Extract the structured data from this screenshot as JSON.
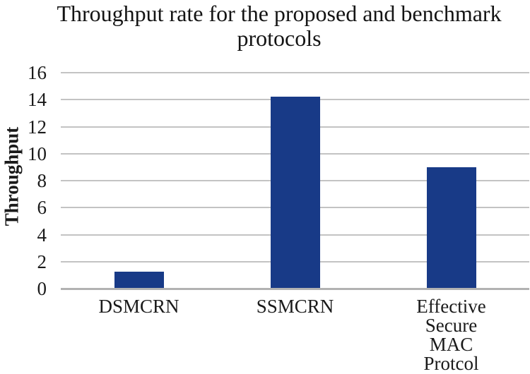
{
  "chart_data": {
    "type": "bar",
    "title": "Throughput rate for the proposed and benchmark protocols",
    "categories": [
      "DSMCRN",
      "SSMCRN",
      "Effective Secure\nMAC Protcol"
    ],
    "values": [
      1.25,
      14.2,
      9
    ],
    "xlabel": "",
    "ylabel": "Throughput",
    "ylim": [
      0,
      16
    ],
    "yticks": [
      0,
      2,
      4,
      6,
      8,
      10,
      12,
      14,
      16
    ],
    "grid": true,
    "legend": "none",
    "bar_color": "#183a87",
    "gridline_color": "#c3c3c3",
    "axis_color": "#b2b2b2",
    "text_color": "#1a1a1a"
  }
}
